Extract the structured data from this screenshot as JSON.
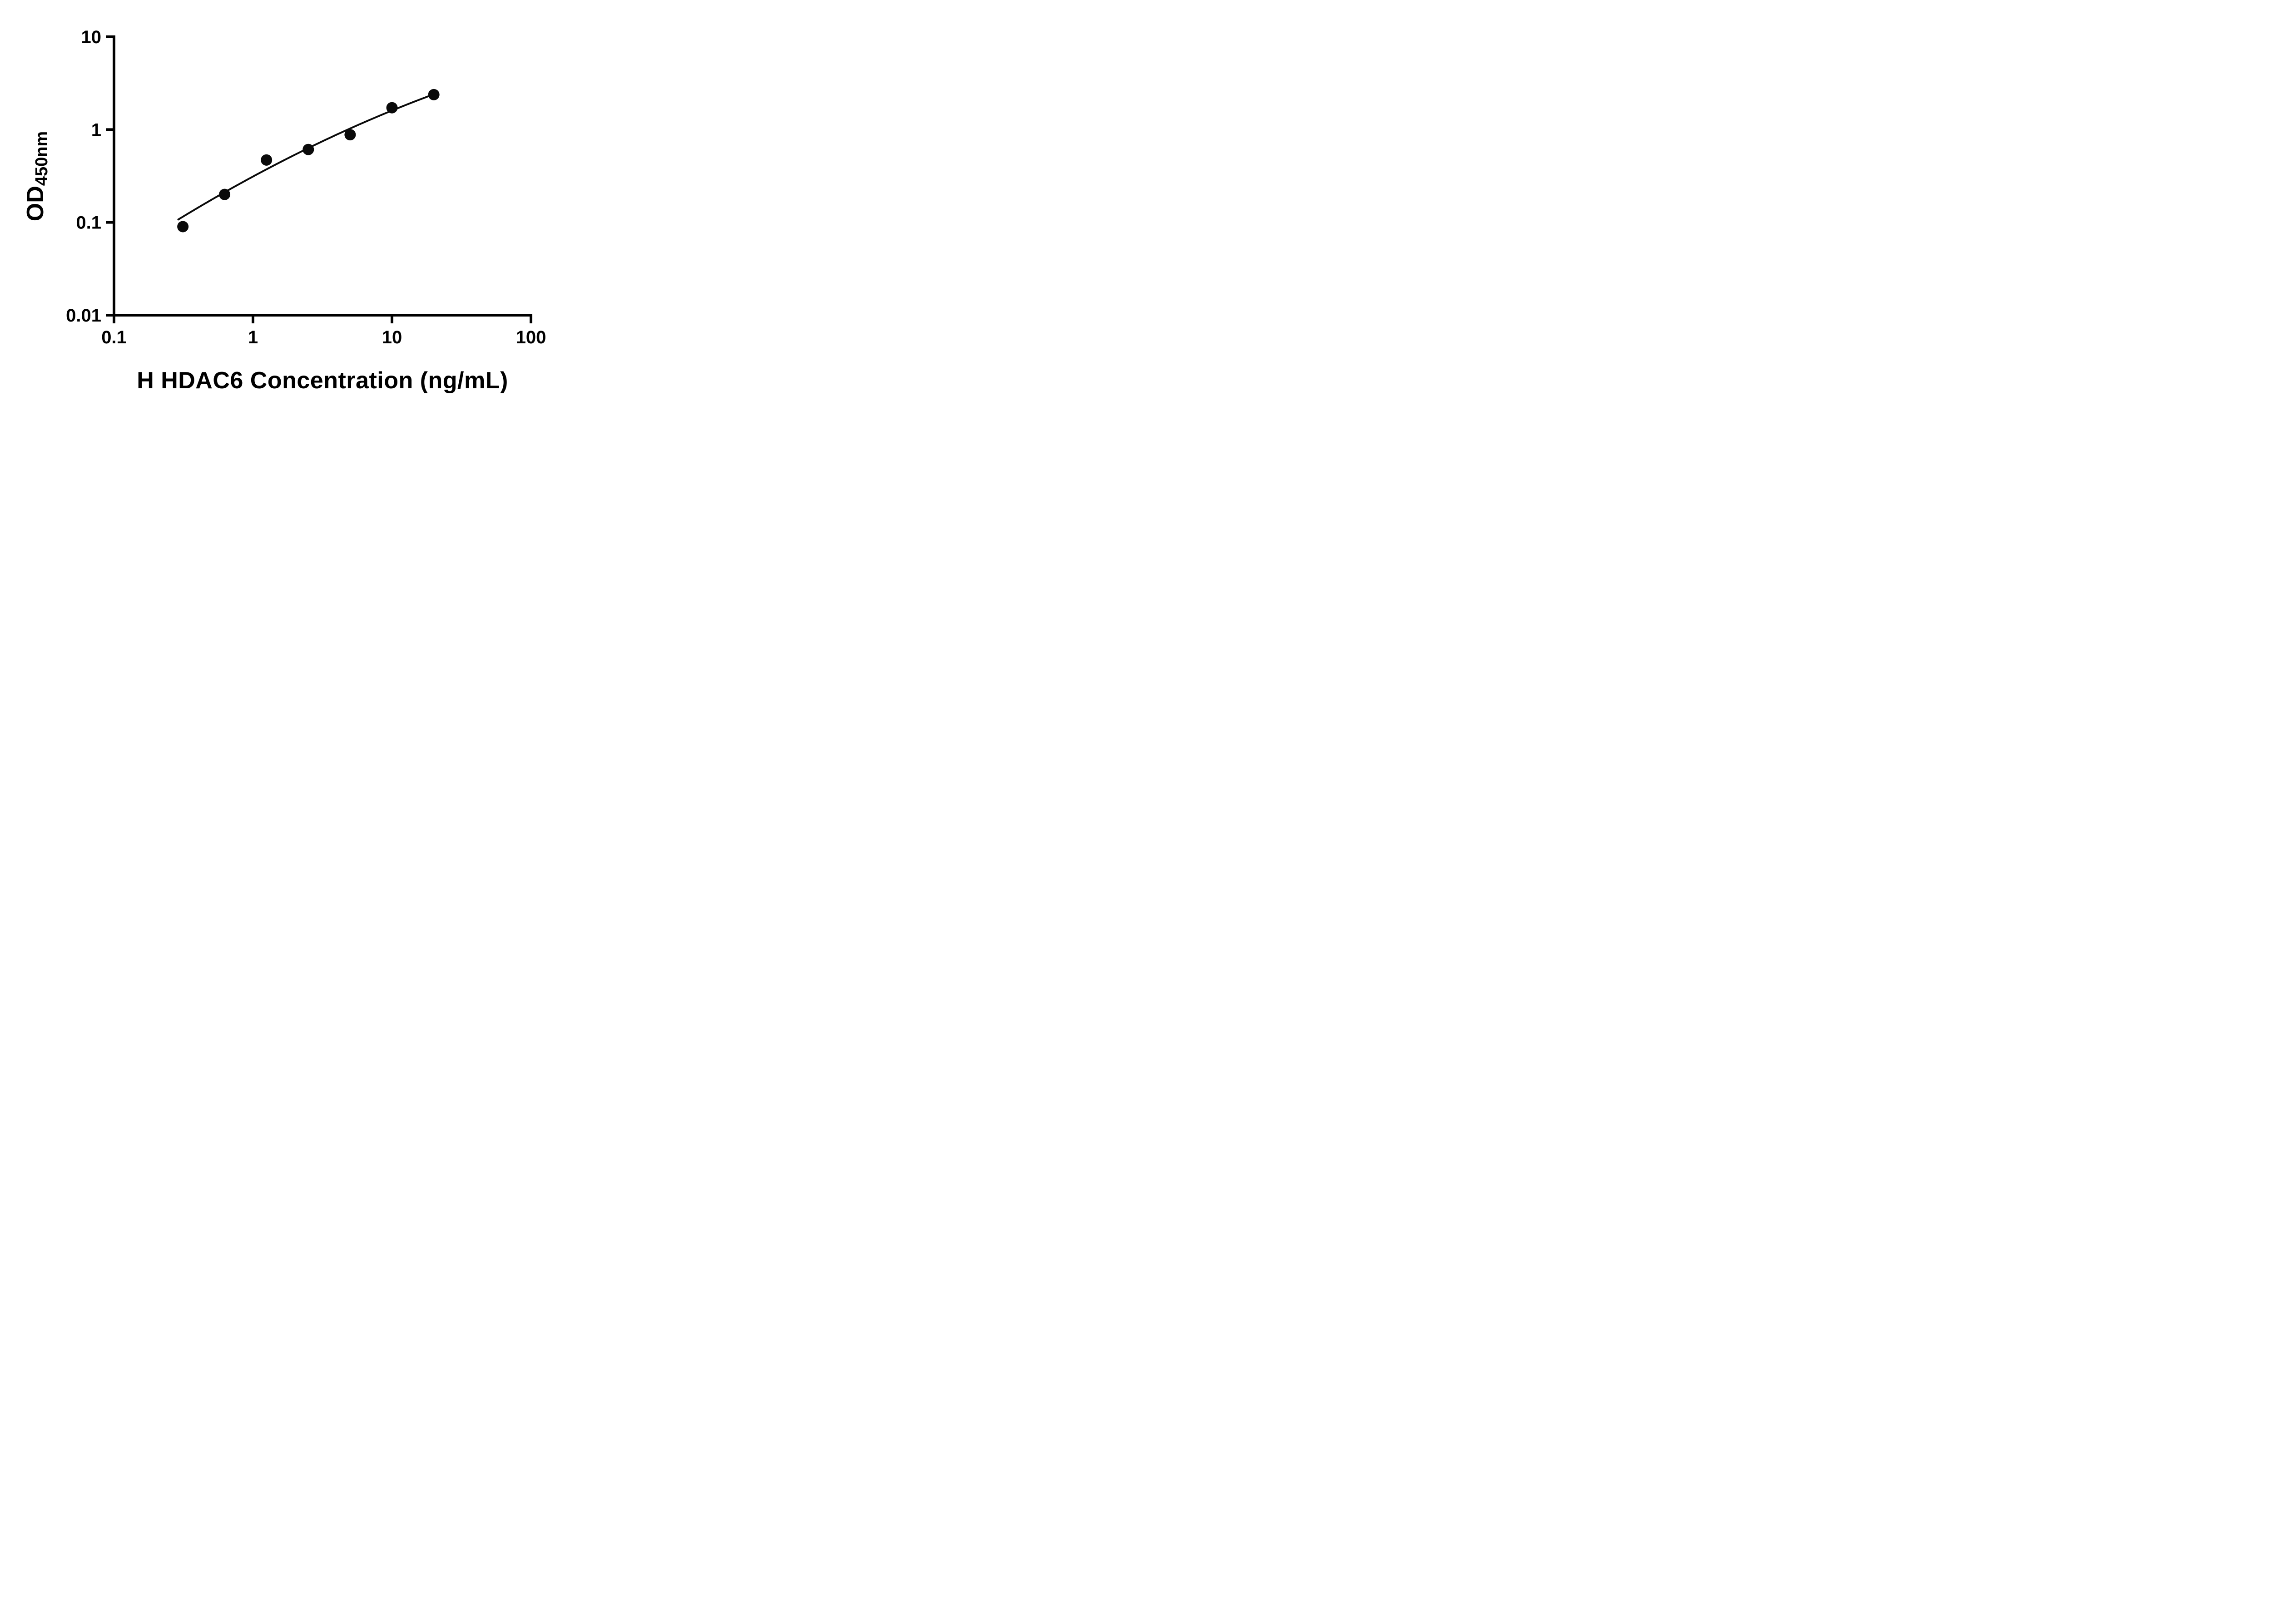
{
  "chart_data": {
    "type": "scatter",
    "title": "",
    "xlabel": "H HDAC6 Concentration (ng/mL)",
    "ylabel_main": "OD",
    "ylabel_sub": "450nm",
    "x_scale": "log",
    "y_scale": "log",
    "xlim": [
      0.1,
      100
    ],
    "ylim": [
      0.01,
      10
    ],
    "grid": false,
    "legend": "none",
    "x_tick_values": [
      0.1,
      1,
      10,
      100
    ],
    "x_tick_labels": [
      "0.1",
      "1",
      "10",
      "100"
    ],
    "y_tick_values": [
      0.01,
      0.1,
      1,
      10
    ],
    "y_tick_labels": [
      "0.01",
      "0.1",
      "1",
      "10"
    ],
    "points": [
      {
        "x": 0.313,
        "y": 0.09
      },
      {
        "x": 0.625,
        "y": 0.2
      },
      {
        "x": 1.25,
        "y": 0.47
      },
      {
        "x": 2.5,
        "y": 0.61
      },
      {
        "x": 5,
        "y": 0.88
      },
      {
        "x": 10,
        "y": 1.72
      },
      {
        "x": 20,
        "y": 2.38
      }
    ],
    "fit_curve": {
      "model": "log-quadratic",
      "a": -0.506,
      "b": 0.809,
      "c": -0.098,
      "x_start": 0.29,
      "x_end": 20
    },
    "marker_color": "#0a0a0a",
    "line_color": "#0a0a0a",
    "axis_color": "#000000"
  }
}
